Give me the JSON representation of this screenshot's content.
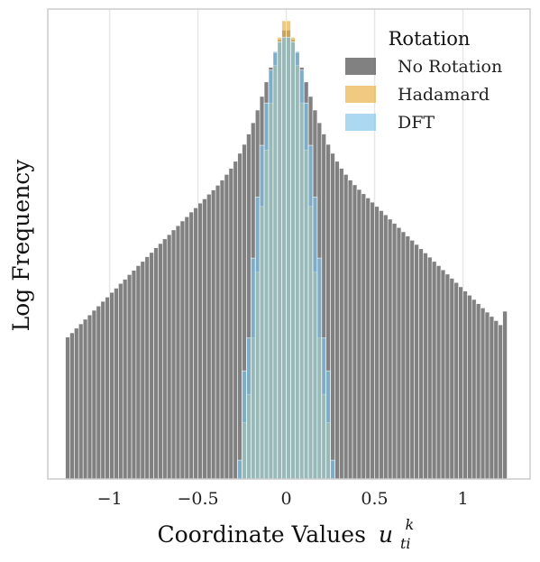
{
  "chart_data": {
    "type": "bar",
    "xlabel": "Coordinate Values",
    "xlabel_math": {
      "base": "u",
      "sub": "ti",
      "sup": "k"
    },
    "ylabel": "Log Frequency",
    "xlim": [
      -1.35,
      1.38
    ],
    "ylim": [
      0,
      1
    ],
    "grid": "vertical",
    "x_ticks": [
      -1,
      -0.5,
      0,
      0.5,
      1
    ],
    "x_tick_labels": [
      "−1",
      "−0.5",
      "0",
      "0.5",
      "1"
    ],
    "bin_width": 0.025,
    "legend": {
      "title": "Rotation",
      "placement": "top-right"
    },
    "series": [
      {
        "name": "No Rotation",
        "color": "#6b6b6b",
        "opacity": 0.85,
        "x": [
          -1.2375,
          -1.2125,
          -1.1875,
          -1.1625,
          -1.1375,
          -1.1125,
          -1.0875,
          -1.0625,
          -1.0375,
          -1.0125,
          -0.9875,
          -0.9625,
          -0.9375,
          -0.9125,
          -0.8875,
          -0.8625,
          -0.8375,
          -0.8125,
          -0.7875,
          -0.7625,
          -0.7375,
          -0.7125,
          -0.6875,
          -0.6625,
          -0.6375,
          -0.6125,
          -0.5875,
          -0.5625,
          -0.5375,
          -0.5125,
          -0.4875,
          -0.4625,
          -0.4375,
          -0.4125,
          -0.3875,
          -0.3625,
          -0.3375,
          -0.3125,
          -0.2875,
          -0.2625,
          -0.2375,
          -0.2125,
          -0.1875,
          -0.1625,
          -0.1375,
          -0.1125,
          -0.0875,
          -0.0625,
          -0.0375,
          -0.0125,
          0.0125,
          0.0375,
          0.0625,
          0.0875,
          0.1125,
          0.1375,
          0.1625,
          0.1875,
          0.2125,
          0.2375,
          0.2625,
          0.2875,
          0.3125,
          0.3375,
          0.3625,
          0.3875,
          0.4125,
          0.4375,
          0.4625,
          0.4875,
          0.5125,
          0.5375,
          0.5625,
          0.5875,
          0.6125,
          0.6375,
          0.6625,
          0.6875,
          0.7125,
          0.7375,
          0.7625,
          0.7875,
          0.8125,
          0.8375,
          0.8625,
          0.8875,
          0.9125,
          0.9375,
          0.9625,
          0.9875,
          1.0125,
          1.0375,
          1.0625,
          1.0875,
          1.1125,
          1.1375,
          1.1625,
          1.1875,
          1.2125,
          1.2375
        ],
        "values": [
          0.302,
          0.311,
          0.321,
          0.33,
          0.34,
          0.349,
          0.359,
          0.368,
          0.378,
          0.387,
          0.397,
          0.406,
          0.416,
          0.425,
          0.435,
          0.444,
          0.454,
          0.463,
          0.473,
          0.482,
          0.492,
          0.501,
          0.511,
          0.52,
          0.53,
          0.539,
          0.549,
          0.558,
          0.568,
          0.577,
          0.587,
          0.596,
          0.606,
          0.615,
          0.625,
          0.636,
          0.648,
          0.661,
          0.676,
          0.693,
          0.712,
          0.734,
          0.758,
          0.785,
          0.814,
          0.845,
          0.876,
          0.907,
          0.935,
          0.955,
          0.955,
          0.935,
          0.907,
          0.876,
          0.845,
          0.814,
          0.785,
          0.758,
          0.734,
          0.712,
          0.693,
          0.676,
          0.661,
          0.648,
          0.636,
          0.626,
          0.616,
          0.607,
          0.598,
          0.589,
          0.58,
          0.571,
          0.562,
          0.553,
          0.544,
          0.535,
          0.526,
          0.517,
          0.508,
          0.499,
          0.49,
          0.481,
          0.472,
          0.463,
          0.454,
          0.445,
          0.436,
          0.427,
          0.418,
          0.409,
          0.4,
          0.391,
          0.382,
          0.373,
          0.364,
          0.355,
          0.346,
          0.337,
          0.328,
          0.357
        ]
      },
      {
        "name": "Hadamard",
        "color": "#e8b44a",
        "opacity": 0.7,
        "x": [
          -0.2375,
          -0.2125,
          -0.1875,
          -0.1625,
          -0.1375,
          -0.1125,
          -0.0875,
          -0.0625,
          -0.0375,
          -0.0125,
          0.0125,
          0.0375,
          0.0625,
          0.0875,
          0.1125,
          0.1375,
          0.1625,
          0.1875,
          0.2125,
          0.2375
        ],
        "values": [
          0.12,
          0.18,
          0.3,
          0.44,
          0.58,
          0.7,
          0.8,
          0.88,
          0.94,
          0.975,
          0.975,
          0.94,
          0.88,
          0.8,
          0.7,
          0.58,
          0.44,
          0.3,
          0.18,
          0.12
        ]
      },
      {
        "name": "DFT",
        "color": "#7fc4ea",
        "opacity": 0.65,
        "x": [
          -0.2625,
          -0.2375,
          -0.2125,
          -0.1875,
          -0.1625,
          -0.1375,
          -0.1125,
          -0.0875,
          -0.0625,
          -0.0375,
          -0.0125,
          0.0125,
          0.0375,
          0.0625,
          0.0875,
          0.1125,
          0.1375,
          0.1625,
          0.1875,
          0.2125,
          0.2375,
          0.2625
        ],
        "values": [
          0.04,
          0.23,
          0.3,
          0.47,
          0.6,
          0.71,
          0.8,
          0.87,
          0.91,
          0.93,
          0.94,
          0.94,
          0.93,
          0.91,
          0.87,
          0.8,
          0.71,
          0.6,
          0.47,
          0.3,
          0.23,
          0.04
        ]
      }
    ]
  }
}
